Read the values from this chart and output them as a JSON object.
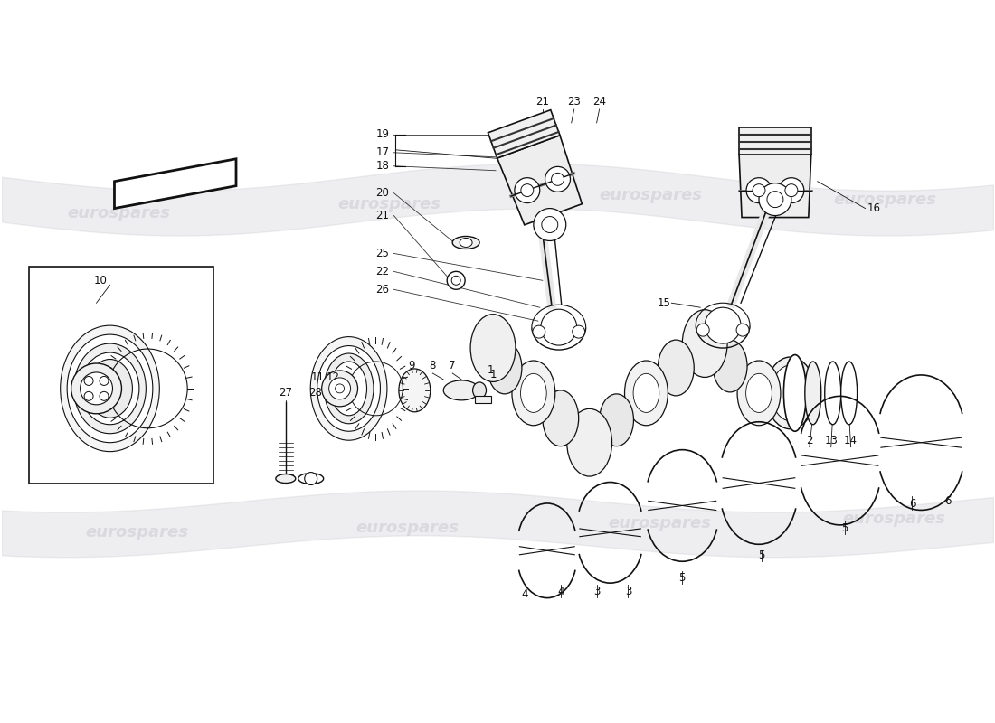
{
  "bg_color": "#ffffff",
  "line_color": "#111111",
  "wm_color": "#c8c8d0",
  "wm_text": "eurospares",
  "fig_width": 11.0,
  "fig_height": 8.0,
  "dpi": 100,
  "lw": 1.2,
  "lw_thin": 0.7,
  "lw_thick": 1.8,
  "fs": 8.5
}
